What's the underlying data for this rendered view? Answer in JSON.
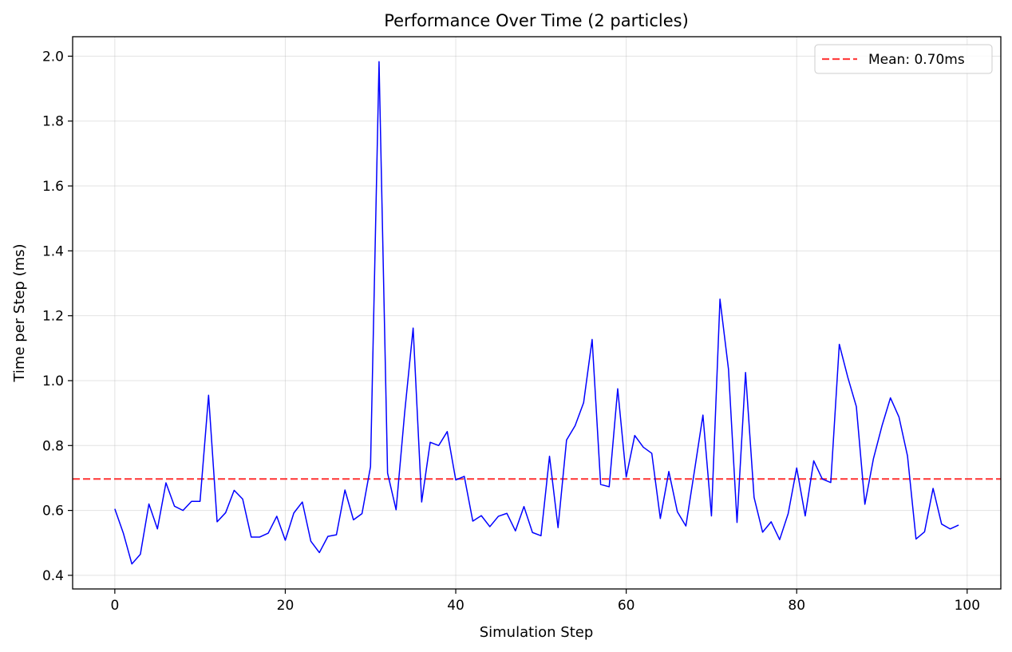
{
  "chart_data": {
    "type": "line",
    "title": "Performance Over Time (2 particles)",
    "xlabel": "Simulation Step",
    "ylabel": "Time per Step (ms)",
    "xlim": [
      -4.95,
      103.95
    ],
    "ylim": [
      0.358,
      2.06
    ],
    "xticks": [
      0,
      20,
      40,
      60,
      80,
      100
    ],
    "yticks": [
      0.4,
      0.6,
      0.8,
      1.0,
      1.2,
      1.4,
      1.6,
      1.8,
      2.0
    ],
    "ytick_labels": [
      "0.4",
      "0.6",
      "0.8",
      "1.0",
      "1.2",
      "1.4",
      "1.6",
      "1.8",
      "2.0"
    ],
    "grid": true,
    "legend_position": "top-right",
    "series": [
      {
        "color": "#0000ff",
        "x": [
          0,
          1,
          2,
          3,
          4,
          5,
          6,
          7,
          8,
          9,
          10,
          11,
          12,
          13,
          14,
          15,
          16,
          17,
          18,
          19,
          20,
          21,
          22,
          23,
          24,
          25,
          26,
          27,
          28,
          29,
          30,
          31,
          32,
          33,
          34,
          35,
          36,
          37,
          38,
          39,
          40,
          41,
          42,
          43,
          44,
          45,
          46,
          47,
          48,
          49,
          50,
          51,
          52,
          53,
          54,
          55,
          56,
          57,
          58,
          59,
          60,
          61,
          62,
          63,
          64,
          65,
          66,
          67,
          68,
          69,
          70,
          71,
          72,
          73,
          74,
          75,
          76,
          77,
          78,
          79,
          80,
          81,
          82,
          83,
          84,
          85,
          86,
          87,
          88,
          89,
          90,
          91,
          92,
          93,
          94,
          95,
          96,
          97,
          98,
          99
        ],
        "values": [
          0.605,
          0.53,
          0.435,
          0.465,
          0.62,
          0.543,
          0.685,
          0.613,
          0.6,
          0.628,
          0.628,
          0.955,
          0.565,
          0.593,
          0.662,
          0.635,
          0.518,
          0.518,
          0.53,
          0.582,
          0.508,
          0.592,
          0.626,
          0.505,
          0.47,
          0.52,
          0.525,
          0.663,
          0.571,
          0.59,
          0.735,
          1.983,
          0.715,
          0.602,
          0.9,
          1.162,
          0.626,
          0.81,
          0.8,
          0.843,
          0.694,
          0.705,
          0.567,
          0.584,
          0.55,
          0.582,
          0.591,
          0.537,
          0.612,
          0.532,
          0.522,
          0.767,
          0.547,
          0.817,
          0.861,
          0.932,
          1.127,
          0.68,
          0.673,
          0.975,
          0.703,
          0.831,
          0.795,
          0.776,
          0.575,
          0.72,
          0.596,
          0.552,
          0.721,
          0.894,
          0.583,
          1.251,
          1.035,
          0.563,
          1.025,
          0.64,
          0.533,
          0.565,
          0.51,
          0.59,
          0.731,
          0.583,
          0.753,
          0.697,
          0.686,
          1.112,
          1.01,
          0.92,
          0.619,
          0.759,
          0.86,
          0.947,
          0.888,
          0.768,
          0.512,
          0.534,
          0.668,
          0.558,
          0.543,
          0.555
        ]
      }
    ],
    "mean_line": {
      "value": 0.697,
      "color": "#ff0000",
      "label": "Mean: 0.70ms"
    }
  }
}
